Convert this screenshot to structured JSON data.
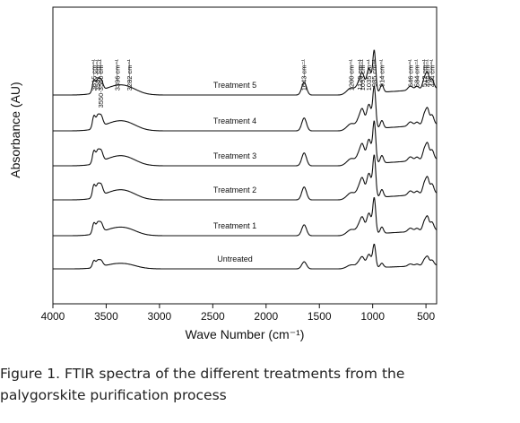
{
  "caption": {
    "line1": "Figure 1. FTIR spectra of the different treatments from the",
    "line2": "palygorskite purification process"
  },
  "chart_data": {
    "type": "line",
    "title": "",
    "xlabel": "Wave Number (cm⁻¹)",
    "ylabel": "Absorbance (AU)",
    "xlim": [
      4000,
      400
    ],
    "x_reversed": true,
    "x_ticks": [
      "4000",
      "3500",
      "3000",
      "2500",
      "2000",
      "1500",
      "1000",
      "500"
    ],
    "y_ticks_shown": false,
    "grid": false,
    "legend": "none",
    "series": [
      {
        "name": "Untreated",
        "offset": 0,
        "scale": 0.55
      },
      {
        "name": "Treatment 1",
        "offset": 1,
        "scale": 0.85
      },
      {
        "name": "Treatment 2",
        "offset": 2,
        "scale": 1.0
      },
      {
        "name": "Treatment 3",
        "offset": 3,
        "scale": 1.0
      },
      {
        "name": "Treatment 4",
        "offset": 4,
        "scale": 1.0
      },
      {
        "name": "Treatment 5",
        "offset": 5,
        "scale": 1.0
      }
    ],
    "peaks": [
      {
        "x": 3615,
        "label": "3615 cm⁻¹"
      },
      {
        "x": 3581,
        "label": "3581 cm⁻¹"
      },
      {
        "x": 3550,
        "label": "3550-3560 cm⁻¹"
      },
      {
        "x": 3396,
        "label": "3396 cm⁻¹"
      },
      {
        "x": 3282,
        "label": "3282 cm⁻¹"
      },
      {
        "x": 1643,
        "label": "1643 cm⁻¹"
      },
      {
        "x": 1200,
        "label": "1200 cm⁻¹"
      },
      {
        "x": 1120,
        "label": "1120 cm⁻¹"
      },
      {
        "x": 1093,
        "label": "1093 cm⁻¹"
      },
      {
        "x": 1035,
        "label": "1035 cm⁻¹"
      },
      {
        "x": 985,
        "label": "985 cm⁻¹"
      },
      {
        "x": 914,
        "label": "914 cm⁻¹"
      },
      {
        "x": 646,
        "label": "646 cm⁻¹"
      },
      {
        "x": 584,
        "label": "584 cm⁻¹"
      },
      {
        "x": 512,
        "label": "512 cm⁻¹"
      },
      {
        "x": 484,
        "label": "484 cm⁻¹"
      },
      {
        "x": 444,
        "label": "444 cm⁻¹"
      }
    ]
  }
}
